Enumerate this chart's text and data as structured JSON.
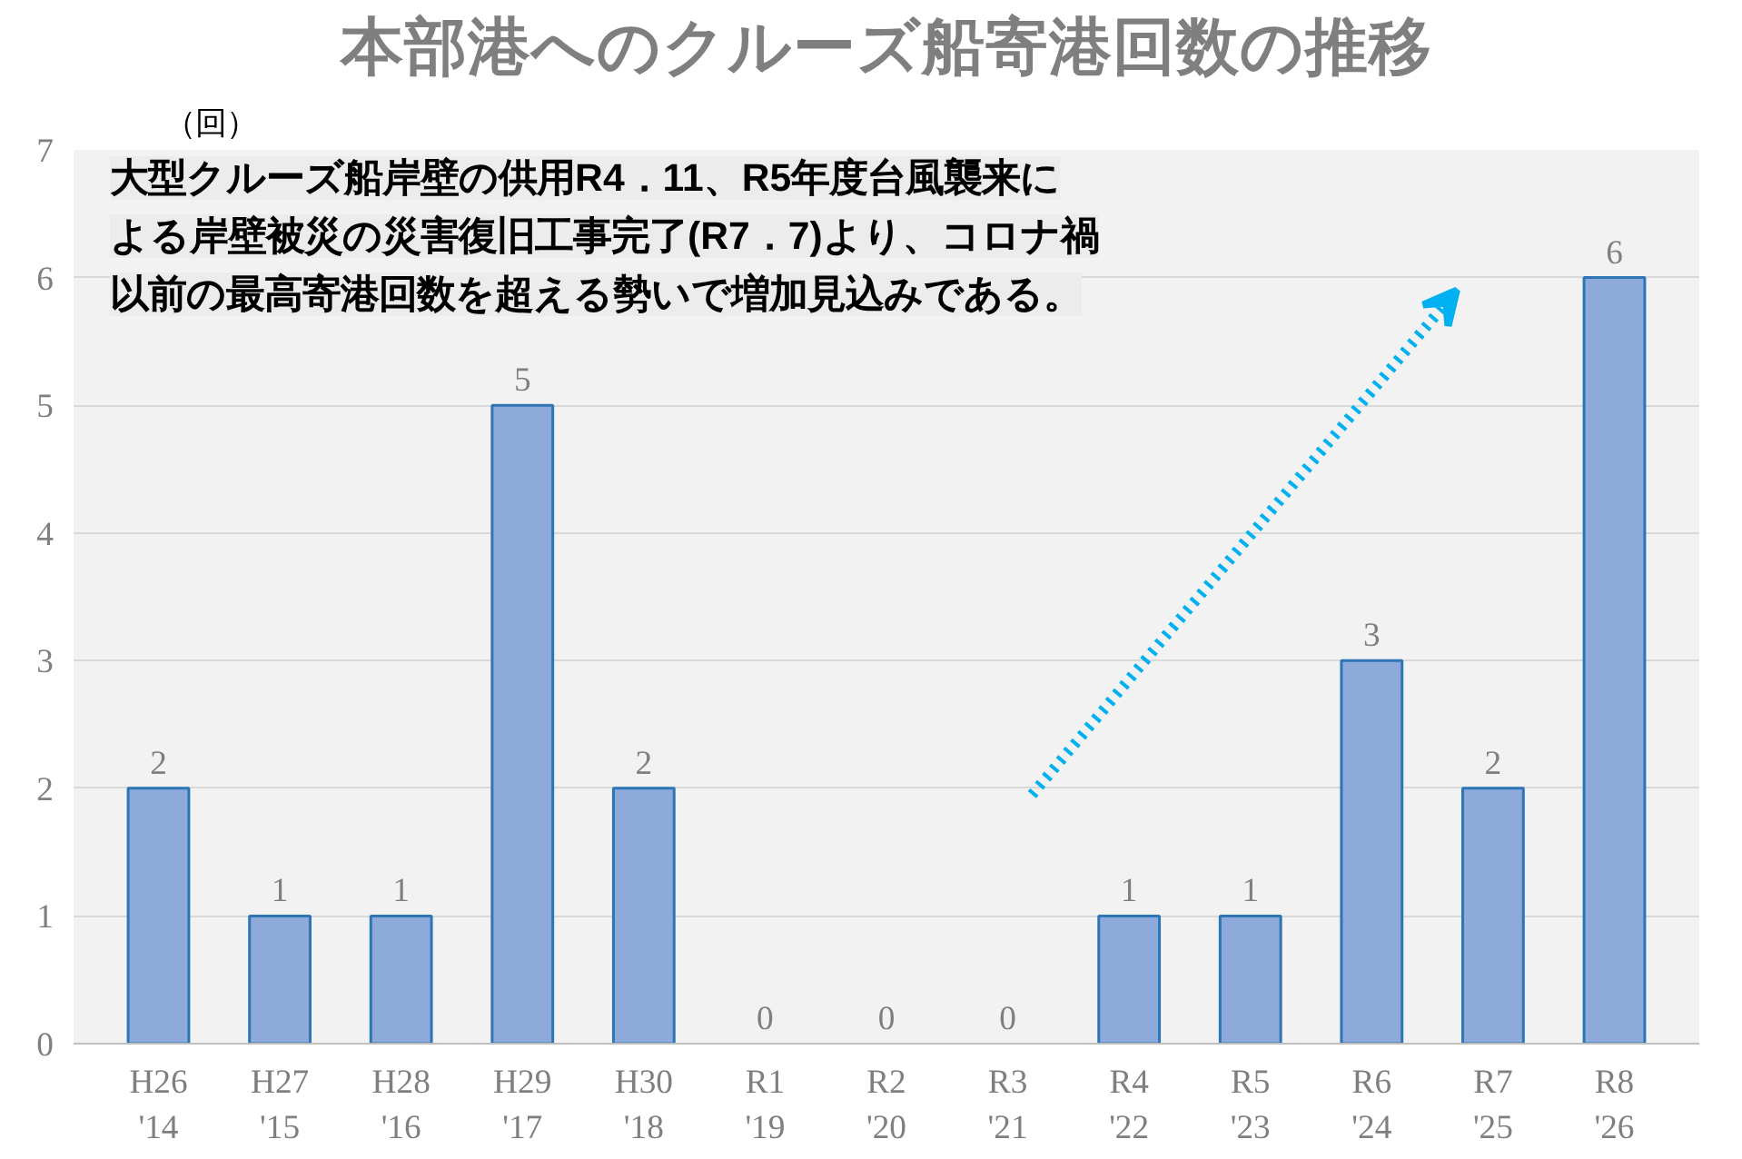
{
  "chart_data": {
    "type": "bar",
    "title": "本部港へのクルーズ船寄港回数の推移",
    "ylabel": "（回）",
    "categories": [
      "H26\n'14",
      "H27\n'15",
      "H28\n'16",
      "H29\n'17",
      "H30\n'18",
      "R1\n'19",
      "R2\n'20",
      "R3\n'21",
      "R4\n'22",
      "R5\n'23",
      "R6\n'24",
      "R7\n'25",
      "R8\n'26"
    ],
    "values": [
      2,
      1,
      1,
      5,
      2,
      0,
      0,
      0,
      1,
      1,
      3,
      2,
      6
    ],
    "color": "#8eaadb",
    "ylim": [
      0,
      7
    ],
    "yticks": [
      0,
      1,
      2,
      3,
      4,
      5,
      6,
      7
    ],
    "grid": "y",
    "data_labels": true,
    "annotations": [
      "大型クルーズ船岸壁の供用R4．11、R5年度台風襲来に",
      "よる岸壁被災の災害復旧工事完了(R7．7)より、コロナ禍",
      "以前の最高寄港回数を超える勢いで増加見込みである。"
    ]
  }
}
